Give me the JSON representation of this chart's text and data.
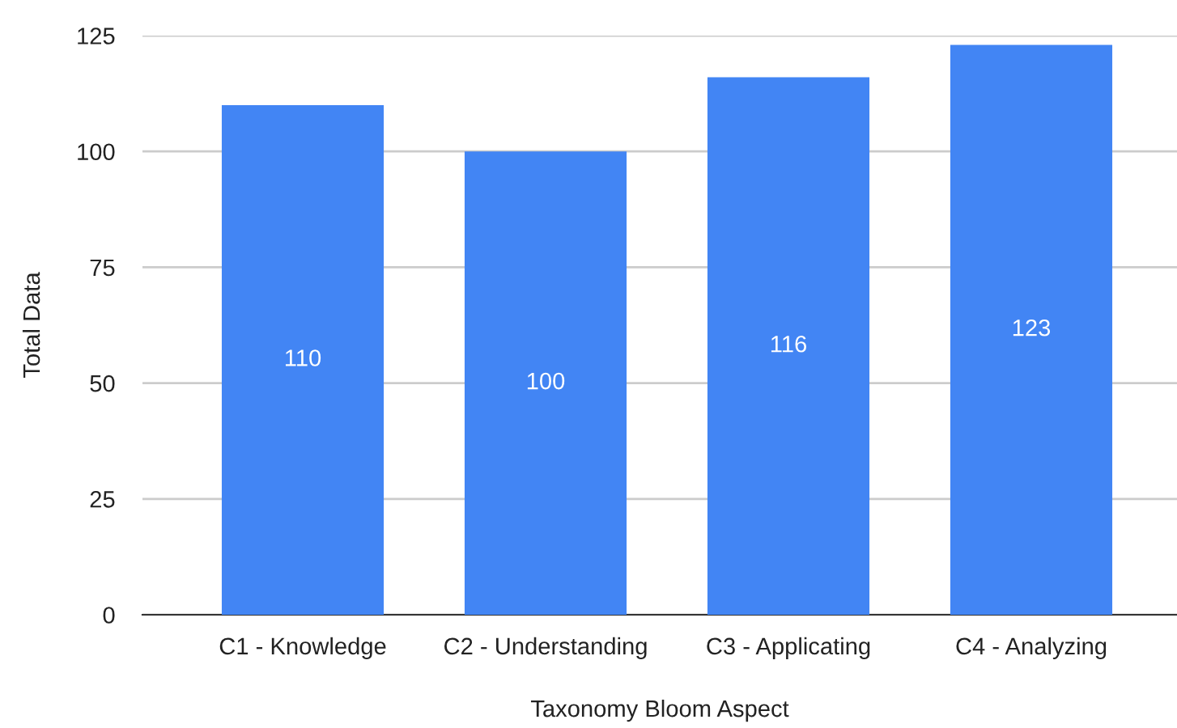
{
  "chart_data": {
    "type": "bar",
    "xlabel": "Taxonomy Bloom Aspect",
    "ylabel": "Total Data",
    "categories": [
      "C1 - Knowledge",
      "C2 - Understanding",
      "C3 - Applicating",
      "C4 - Analyzing"
    ],
    "values": [
      110,
      100,
      116,
      123
    ],
    "color": "#4285f4",
    "ylim": [
      0,
      125
    ],
    "yticks": [
      0,
      25,
      50,
      75,
      100,
      125
    ],
    "grid": "y",
    "data_labels": true
  }
}
